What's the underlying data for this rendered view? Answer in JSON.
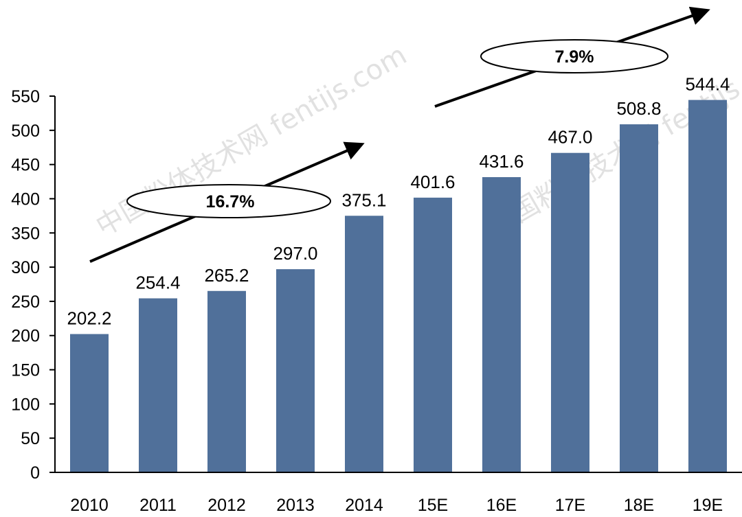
{
  "chart_data": {
    "type": "bar",
    "categories": [
      "2010",
      "2011",
      "2012",
      "2013",
      "2014",
      "15E",
      "16E",
      "17E",
      "18E",
      "19E"
    ],
    "values": [
      202.2,
      254.4,
      265.2,
      297.0,
      375.1,
      401.6,
      431.6,
      467.0,
      508.8,
      544.4
    ],
    "data_labels": [
      "202.2",
      "254.4",
      "265.2",
      "297.0",
      "375.1",
      "401.6",
      "431.6",
      "467.0",
      "508.8",
      "544.4"
    ],
    "title": "",
    "xlabel": "",
    "ylabel": "",
    "ylim": [
      0,
      550
    ],
    "yticks": [
      0,
      50,
      100,
      150,
      200,
      250,
      300,
      350,
      400,
      450,
      500,
      550
    ],
    "grid": false,
    "bar_color": "#50709a",
    "annotations": [
      {
        "text": "16.7%",
        "from": "2010",
        "to": "2014"
      },
      {
        "text": "7.9%",
        "from": "2014",
        "to": "19E"
      }
    ],
    "watermark": "中国粉体技术网 fentijs.com"
  }
}
